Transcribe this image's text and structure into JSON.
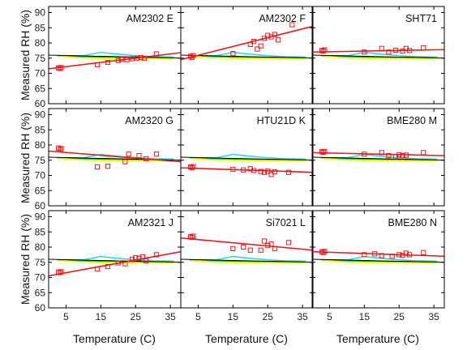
{
  "colors": {
    "reference": "#000000",
    "ref_cyan": "#22d3ee",
    "ref_yellow": "#ffff00",
    "ref_green": "#1aaa2a",
    "sensor": "#e8191b"
  },
  "chart_data": {
    "type": "scatter",
    "xlabel": "Temperature (C)",
    "ylabel": "Measured RH (%)",
    "xlim": [
      0,
      38
    ],
    "ylim": [
      60,
      92
    ],
    "xticks": [
      5,
      15,
      25,
      35
    ],
    "yticks": [
      60,
      65,
      70,
      75,
      80,
      85,
      90
    ],
    "grid": false,
    "reference_lines": {
      "black": {
        "x": [
          0,
          38
        ],
        "y": [
          76.0,
          75.0
        ]
      },
      "cyan": {
        "x": [
          2.5,
          10,
          15,
          20,
          25,
          30,
          36
        ],
        "y": [
          75.8,
          75.8,
          76.9,
          76.3,
          75.8,
          75.5,
          75.4
        ]
      },
      "yellow": {
        "x": [
          2.5,
          10,
          20,
          30,
          36
        ],
        "y": [
          75.6,
          75.0,
          74.8,
          74.8,
          74.8
        ]
      },
      "green": {
        "x": [
          2.5,
          10,
          20,
          30,
          36
        ],
        "y": [
          75.8,
          75.5,
          75.3,
          75.2,
          75.2
        ]
      }
    },
    "panels": [
      {
        "title": "AM2302 E",
        "fit": [
          71.5,
          76.8
        ],
        "points": [
          [
            2.8,
            71.8
          ],
          [
            3.2,
            71.6
          ],
          [
            3.6,
            71.9
          ],
          [
            14,
            72.8
          ],
          [
            17,
            73.6
          ],
          [
            20,
            74.2
          ],
          [
            21,
            74.6
          ],
          [
            22.5,
            74.5
          ],
          [
            24,
            74.8
          ],
          [
            25.5,
            75.0
          ],
          [
            26.5,
            75.2
          ],
          [
            27.5,
            74.9
          ],
          [
            31,
            76.4
          ]
        ]
      },
      {
        "title": "AM2302 F",
        "fit": [
          74.5,
          85.5
        ],
        "points": [
          [
            2.8,
            75.6
          ],
          [
            3.2,
            75.2
          ],
          [
            3.6,
            75.8
          ],
          [
            15,
            76.5
          ],
          [
            20,
            79.5
          ],
          [
            21,
            80.5
          ],
          [
            22,
            78
          ],
          [
            23,
            79
          ],
          [
            24,
            81.5
          ],
          [
            25,
            82.5
          ],
          [
            26,
            82
          ],
          [
            27,
            82.8
          ],
          [
            28,
            81
          ],
          [
            32,
            86
          ]
        ]
      },
      {
        "title": "SHT71",
        "fit": [
          77.0,
          77.8
        ],
        "points": [
          [
            2.8,
            77.5
          ],
          [
            3.2,
            77.3
          ],
          [
            3.6,
            77.7
          ],
          [
            15,
            77.0
          ],
          [
            20,
            78.2
          ],
          [
            22,
            77.0
          ],
          [
            24,
            77.6
          ],
          [
            26,
            77.3
          ],
          [
            27,
            78.2
          ],
          [
            28,
            77.5
          ],
          [
            32,
            78.4
          ]
        ]
      },
      {
        "title": "AM2320 G",
        "fit": [
          78.0,
          74.5
        ],
        "points": [
          [
            2.8,
            79
          ],
          [
            3.2,
            78.5
          ],
          [
            3.6,
            78.8
          ],
          [
            14,
            72.8
          ],
          [
            17,
            73.0
          ],
          [
            22,
            74.5
          ],
          [
            23,
            77
          ],
          [
            26,
            76.5
          ],
          [
            28,
            75.5
          ],
          [
            31,
            77
          ]
        ]
      },
      {
        "title": "HTU21D K",
        "fit": [
          72.5,
          71.0
        ],
        "points": [
          [
            2.8,
            72.8
          ],
          [
            3.2,
            72.5
          ],
          [
            3.6,
            72.9
          ],
          [
            15,
            72.0
          ],
          [
            18,
            71.8
          ],
          [
            20,
            72.2
          ],
          [
            21,
            71.6
          ],
          [
            23,
            71.3
          ],
          [
            24,
            71.0
          ],
          [
            25,
            71.4
          ],
          [
            26,
            70.3
          ],
          [
            27,
            71.2
          ],
          [
            31,
            71.0
          ]
        ]
      },
      {
        "title": "BME280 M",
        "fit": [
          77.5,
          76.5
        ],
        "points": [
          [
            2.8,
            77.8
          ],
          [
            3.2,
            77.6
          ],
          [
            3.6,
            77.9
          ],
          [
            15,
            77.0
          ],
          [
            20,
            77.5
          ],
          [
            22,
            76.5
          ],
          [
            24,
            76.2
          ],
          [
            25,
            76.8
          ],
          [
            26,
            76.5
          ],
          [
            27,
            76.7
          ],
          [
            32,
            77.5
          ]
        ]
      },
      {
        "title": "AM2321 J",
        "fit": [
          70.5,
          78.5
        ],
        "points": [
          [
            2.8,
            71.8
          ],
          [
            3.2,
            71.6
          ],
          [
            3.6,
            71.9
          ],
          [
            14,
            72.8
          ],
          [
            17,
            73.6
          ],
          [
            20,
            74.8
          ],
          [
            22,
            74.5
          ],
          [
            24,
            76
          ],
          [
            25,
            76.5
          ],
          [
            26,
            76.3
          ],
          [
            27,
            76.8
          ],
          [
            28,
            75.5
          ],
          [
            31,
            77.5
          ]
        ]
      },
      {
        "title": "Si7021 L",
        "fit": [
          83.0,
          79.0
        ],
        "points": [
          [
            2.8,
            83.5
          ],
          [
            3.2,
            83.2
          ],
          [
            3.6,
            83.6
          ],
          [
            15,
            79.5
          ],
          [
            18,
            80
          ],
          [
            20,
            79
          ],
          [
            23,
            79
          ],
          [
            24,
            82
          ],
          [
            25,
            80.5
          ],
          [
            26,
            81
          ],
          [
            27,
            79.5
          ],
          [
            31,
            81.5
          ]
        ]
      },
      {
        "title": "BME280 N",
        "fit": [
          78.5,
          77.0
        ],
        "points": [
          [
            2.8,
            78.5
          ],
          [
            3.2,
            78.2
          ],
          [
            3.6,
            78.6
          ],
          [
            15,
            77.5
          ],
          [
            18,
            77.8
          ],
          [
            20,
            77.2
          ],
          [
            23,
            77.0
          ],
          [
            25,
            77.5
          ],
          [
            26,
            77.3
          ],
          [
            27,
            78.0
          ],
          [
            28,
            77.5
          ],
          [
            32,
            78.2
          ]
        ]
      }
    ]
  }
}
